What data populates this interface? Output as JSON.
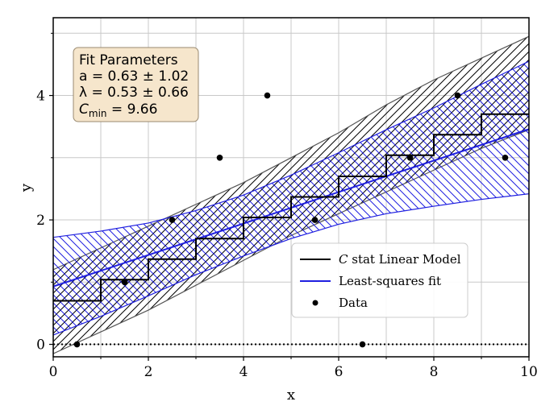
{
  "chart_data": {
    "type": "line",
    "title": "",
    "xlabel": "x",
    "ylabel": "y",
    "xlim": [
      0,
      10
    ],
    "ylim": [
      -0.2,
      5.25
    ],
    "xticks": [
      0,
      2,
      4,
      6,
      8,
      10
    ],
    "yticks": [
      0,
      2,
      4
    ],
    "minor_grid": true,
    "grid": true,
    "data_points": {
      "name": "Data",
      "x": [
        0.5,
        1.5,
        2.5,
        3.5,
        4.5,
        5.5,
        6.5,
        7.5,
        8.5,
        9.5
      ],
      "y": [
        0,
        1,
        2,
        3,
        4,
        2,
        0,
        3,
        4,
        3
      ]
    },
    "cstat_fit": {
      "name": "C stat Linear Model",
      "a": 0.63,
      "lambda": 0.53,
      "step_x": [
        0,
        1,
        2,
        3,
        4,
        5,
        6,
        7,
        8,
        9,
        10
      ],
      "step_y": [
        0.7,
        1.04,
        1.37,
        1.7,
        2.04,
        2.37,
        2.7,
        3.04,
        3.37,
        3.7,
        3.87
      ],
      "band_lower": [
        -0.15,
        0.2,
        0.55,
        0.95,
        1.35,
        1.75,
        2.1,
        2.45,
        2.8,
        3.15,
        3.45
      ],
      "band_upper": [
        1.2,
        1.55,
        1.9,
        2.25,
        2.6,
        3.0,
        3.4,
        3.85,
        4.25,
        4.6,
        4.95
      ],
      "color": "#000000"
    },
    "ls_fit": {
      "name": "Least-squares fit",
      "y0": 0.93,
      "slope": 0.253,
      "band_lower": [
        0.15,
        0.45,
        0.78,
        1.12,
        1.42,
        1.7,
        1.93,
        2.1,
        2.22,
        2.33,
        2.42
      ],
      "band_upper": [
        1.72,
        1.82,
        1.95,
        2.15,
        2.4,
        2.72,
        3.08,
        3.45,
        3.8,
        4.18,
        4.55
      ],
      "color": "#1f1fe0"
    },
    "zero_line": {
      "y": 0,
      "style": "dotted"
    },
    "legend_position": "lower-right",
    "annotation": {
      "heading": "Fit Parameters",
      "line1": "a = 0.63 ± 1.02",
      "line2": "λ = 0.53 ± 0.66",
      "line3_prefix": "C",
      "line3_sub": "min",
      "line3_suffix": " = 9.66"
    },
    "legend": [
      {
        "label_prefix": "C",
        "label_suffix": " stat Linear Model"
      },
      {
        "label": "Least-squares fit"
      },
      {
        "label": "Data"
      }
    ]
  }
}
